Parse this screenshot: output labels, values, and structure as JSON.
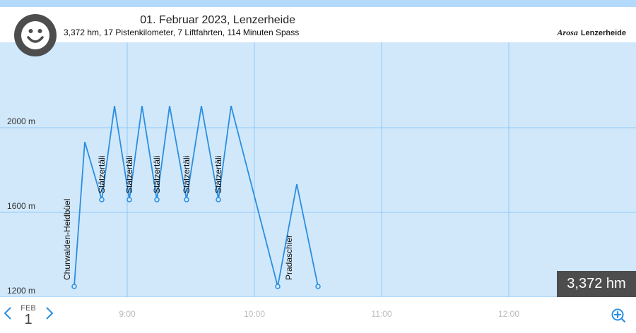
{
  "header": {
    "title": "01. Februar 2023, Lenzerheide",
    "subtitle": "3,372 hm, 17 Pistenkilometer, 7 Liftfahrten, 114 Minuten Spass",
    "logo_text_1": "Arosa",
    "logo_text_2": "Lenzerheide",
    "avatar_icon": "smiley-icon"
  },
  "chart_data": {
    "type": "line",
    "x_ticks": [
      "9:00",
      "10:00",
      "11:00",
      "12:00"
    ],
    "y_ticks": [
      "2000 m",
      "1600 m",
      "1200 m"
    ],
    "y_values": [
      2000,
      1600,
      1200
    ],
    "xlim": [
      "08:00",
      "13:00"
    ],
    "ylim": [
      1200,
      2400
    ],
    "color": "#2b8ee0",
    "points": [
      {
        "time": "08:35",
        "elevation": 1250,
        "label": "Churwalden-Heidbüel"
      },
      {
        "time": "08:40",
        "elevation": 1933
      },
      {
        "time": "08:48",
        "elevation": 1660,
        "label": "Stätzertäli"
      },
      {
        "time": "08:54",
        "elevation": 2103
      },
      {
        "time": "09:01",
        "elevation": 1660,
        "label": "Stätzertäli"
      },
      {
        "time": "09:07",
        "elevation": 2103
      },
      {
        "time": "09:14",
        "elevation": 1660,
        "label": "Stätzertäli"
      },
      {
        "time": "09:20",
        "elevation": 2103
      },
      {
        "time": "09:28",
        "elevation": 1660,
        "label": "Stätzertäli"
      },
      {
        "time": "09:35",
        "elevation": 2103
      },
      {
        "time": "09:43",
        "elevation": 1660,
        "label": "Stätzertäli"
      },
      {
        "time": "09:49",
        "elevation": 2103
      },
      {
        "time": "10:11",
        "elevation": 1250,
        "label": "Pradaschier"
      },
      {
        "time": "10:20",
        "elevation": 1733
      },
      {
        "time": "10:30",
        "elevation": 1250,
        "marker": true
      }
    ]
  },
  "summary_badge": "3,372 hm",
  "date_nav": {
    "month": "FEB",
    "day": "1",
    "prev_icon": "chevron-left-icon",
    "next_icon": "chevron-right-icon",
    "zoom_icon": "zoom-in-icon"
  }
}
